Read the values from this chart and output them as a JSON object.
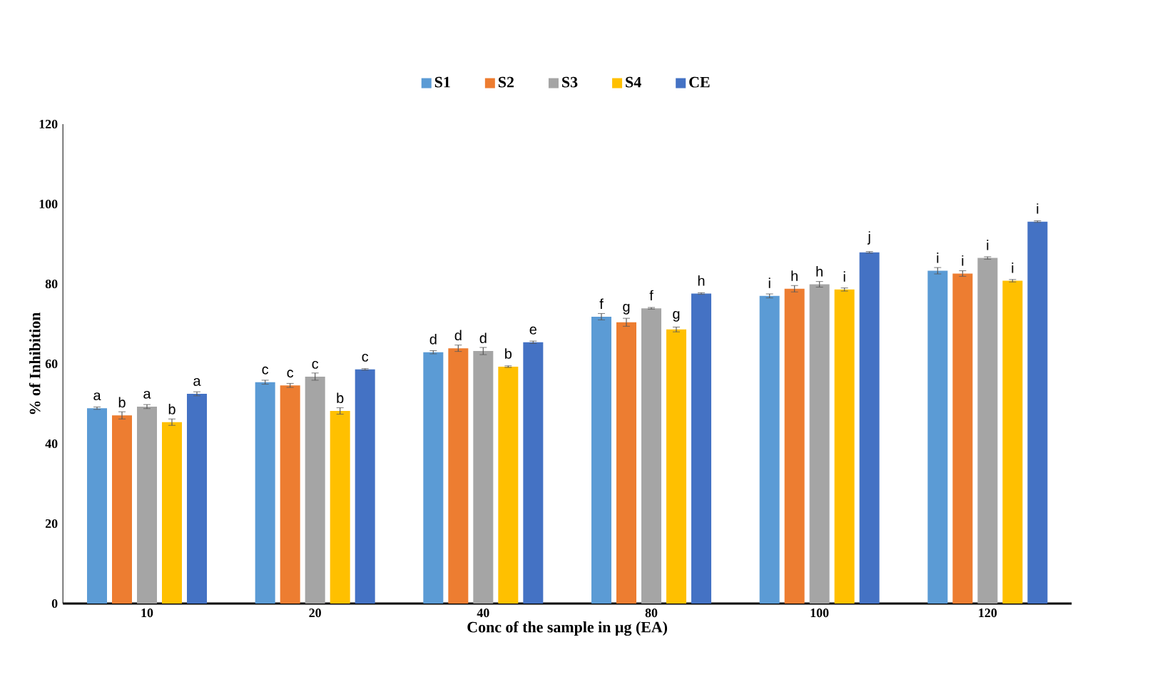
{
  "chart_data": {
    "type": "bar",
    "xlabel": "Conc of the sample in µg (EA)",
    "ylabel": "% of Inhibition",
    "categories": [
      "10",
      "20",
      "40",
      "80",
      "100",
      "120"
    ],
    "ylim": [
      0,
      120
    ],
    "yticks": [
      0,
      20,
      40,
      60,
      80,
      100,
      120
    ],
    "grid": false,
    "legend": "top",
    "series": [
      {
        "name": "S1",
        "color": "#5b9bd5",
        "values": [
          48.9,
          55.4,
          62.9,
          71.8,
          77.0,
          83.3
        ],
        "errors": [
          0.3,
          0.5,
          0.4,
          0.8,
          0.5,
          0.8
        ],
        "value_labels": [
          "a",
          "c",
          "d",
          "f",
          "i",
          "i"
        ]
      },
      {
        "name": "S2",
        "color": "#ed7d31",
        "values": [
          47.1,
          54.6,
          63.9,
          70.4,
          78.8,
          82.6
        ],
        "errors": [
          0.9,
          0.5,
          0.8,
          1.0,
          0.8,
          0.7
        ],
        "value_labels": [
          "b",
          "c",
          "d",
          "g",
          "h",
          "i"
        ]
      },
      {
        "name": "S3",
        "color": "#a5a5a5",
        "values": [
          49.3,
          56.8,
          63.2,
          73.9,
          79.9,
          86.5
        ],
        "errors": [
          0.5,
          0.9,
          0.9,
          0.2,
          0.7,
          0.3
        ],
        "value_labels": [
          "a",
          "c",
          "d",
          "f",
          "h",
          "i"
        ]
      },
      {
        "name": "S4",
        "color": "#ffc000",
        "values": [
          45.4,
          48.2,
          59.3,
          68.6,
          78.6,
          80.8
        ],
        "errors": [
          0.8,
          0.8,
          0.2,
          0.6,
          0.4,
          0.3
        ],
        "value_labels": [
          "b",
          "b",
          "b",
          "g",
          "i",
          "i"
        ]
      },
      {
        "name": "CE",
        "color": "#4472c4",
        "values": [
          52.5,
          58.6,
          65.4,
          77.6,
          87.9,
          95.6
        ],
        "errors": [
          0.5,
          0.2,
          0.3,
          0.2,
          0.2,
          0.2
        ],
        "value_labels": [
          "a",
          "c",
          "e",
          "h",
          "j",
          "i"
        ]
      }
    ]
  }
}
